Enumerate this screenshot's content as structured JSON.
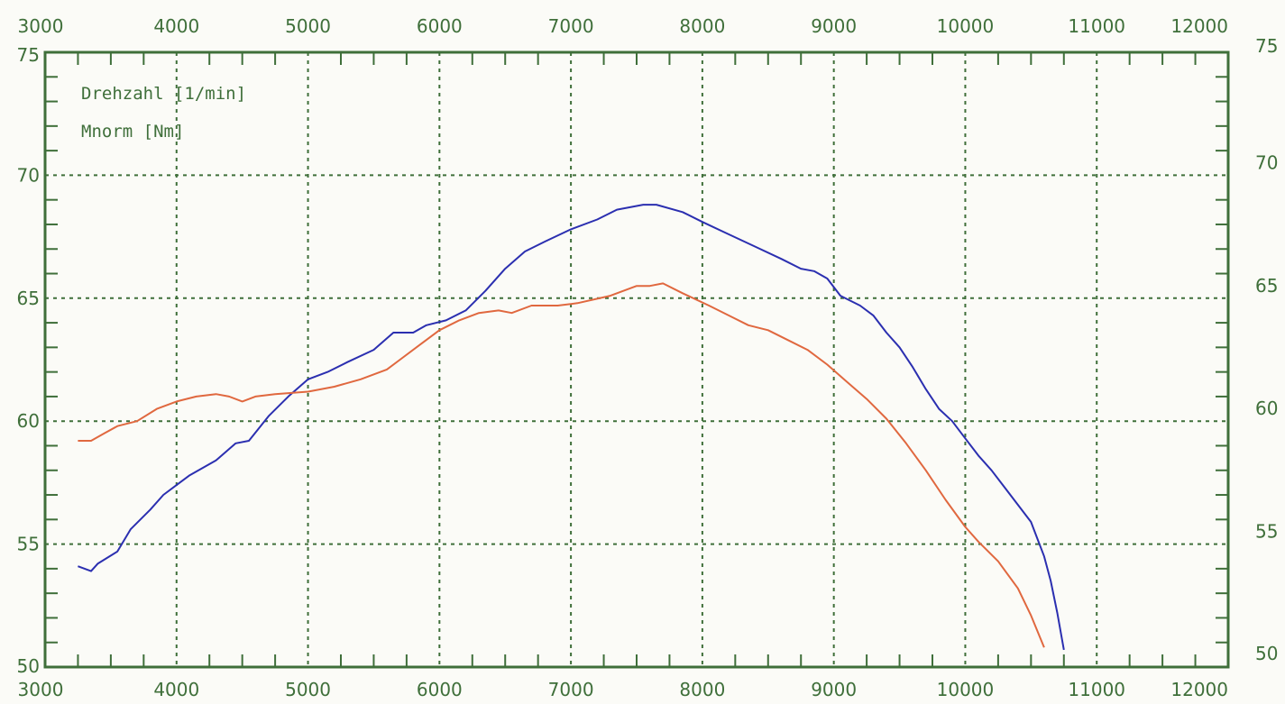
{
  "chart_data": {
    "type": "line",
    "x_ticks": [
      "3000",
      "4000",
      "5000",
      "6000",
      "7000",
      "8000",
      "9000",
      "10000",
      "11000",
      "12000"
    ],
    "y_ticks": [
      "50",
      "55",
      "60",
      "65",
      "70",
      "75"
    ],
    "xlim": [
      3000,
      12000
    ],
    "ylim": [
      50,
      75
    ],
    "grid": true,
    "legend_position": "top-left",
    "legend": [
      "Drehzahl [1/min]",
      "Mnorm [Nm]"
    ],
    "colors": {
      "axis": "#3f6f3a",
      "blue": "#2b2fb0",
      "orange": "#e0683f",
      "background": "#fbfbf7"
    },
    "series": [
      {
        "color": "#2b2fb0",
        "points": [
          [
            3250,
            54.1
          ],
          [
            3350,
            53.9
          ],
          [
            3400,
            54.2
          ],
          [
            3550,
            54.7
          ],
          [
            3650,
            55.6
          ],
          [
            3800,
            56.4
          ],
          [
            3900,
            57.0
          ],
          [
            4000,
            57.4
          ],
          [
            4100,
            57.8
          ],
          [
            4300,
            58.4
          ],
          [
            4450,
            59.1
          ],
          [
            4550,
            59.2
          ],
          [
            4700,
            60.2
          ],
          [
            4850,
            61.0
          ],
          [
            5000,
            61.7
          ],
          [
            5150,
            62.0
          ],
          [
            5300,
            62.4
          ],
          [
            5500,
            62.9
          ],
          [
            5650,
            63.6
          ],
          [
            5800,
            63.6
          ],
          [
            5900,
            63.9
          ],
          [
            6050,
            64.1
          ],
          [
            6200,
            64.5
          ],
          [
            6350,
            65.3
          ],
          [
            6500,
            66.2
          ],
          [
            6650,
            66.9
          ],
          [
            6800,
            67.3
          ],
          [
            7000,
            67.8
          ],
          [
            7200,
            68.2
          ],
          [
            7350,
            68.6
          ],
          [
            7550,
            68.8
          ],
          [
            7650,
            68.8
          ],
          [
            7850,
            68.5
          ],
          [
            8000,
            68.1
          ],
          [
            8200,
            67.6
          ],
          [
            8400,
            67.1
          ],
          [
            8600,
            66.6
          ],
          [
            8750,
            66.2
          ],
          [
            8850,
            66.1
          ],
          [
            8950,
            65.8
          ],
          [
            9050,
            65.1
          ],
          [
            9200,
            64.7
          ],
          [
            9300,
            64.3
          ],
          [
            9400,
            63.6
          ],
          [
            9500,
            63.0
          ],
          [
            9600,
            62.2
          ],
          [
            9700,
            61.3
          ],
          [
            9800,
            60.5
          ],
          [
            9900,
            60.0
          ],
          [
            10000,
            59.3
          ],
          [
            10100,
            58.6
          ],
          [
            10200,
            58.0
          ],
          [
            10300,
            57.3
          ],
          [
            10400,
            56.6
          ],
          [
            10500,
            55.9
          ],
          [
            10550,
            55.2
          ],
          [
            10600,
            54.5
          ],
          [
            10650,
            53.5
          ],
          [
            10700,
            52.2
          ],
          [
            10750,
            50.7
          ]
        ]
      },
      {
        "color": "#e0683f",
        "points": [
          [
            3250,
            59.2
          ],
          [
            3350,
            59.2
          ],
          [
            3450,
            59.5
          ],
          [
            3550,
            59.8
          ],
          [
            3700,
            60.0
          ],
          [
            3850,
            60.5
          ],
          [
            4000,
            60.8
          ],
          [
            4150,
            61.0
          ],
          [
            4300,
            61.1
          ],
          [
            4400,
            61.0
          ],
          [
            4500,
            60.8
          ],
          [
            4600,
            61.0
          ],
          [
            4750,
            61.1
          ],
          [
            5000,
            61.2
          ],
          [
            5200,
            61.4
          ],
          [
            5400,
            61.7
          ],
          [
            5600,
            62.1
          ],
          [
            5700,
            62.5
          ],
          [
            5850,
            63.1
          ],
          [
            6000,
            63.7
          ],
          [
            6150,
            64.1
          ],
          [
            6300,
            64.4
          ],
          [
            6450,
            64.5
          ],
          [
            6550,
            64.4
          ],
          [
            6700,
            64.7
          ],
          [
            6900,
            64.7
          ],
          [
            7050,
            64.8
          ],
          [
            7300,
            65.1
          ],
          [
            7500,
            65.5
          ],
          [
            7600,
            65.5
          ],
          [
            7700,
            65.6
          ],
          [
            7850,
            65.2
          ],
          [
            8050,
            64.7
          ],
          [
            8200,
            64.3
          ],
          [
            8350,
            63.9
          ],
          [
            8500,
            63.7
          ],
          [
            8650,
            63.3
          ],
          [
            8800,
            62.9
          ],
          [
            8950,
            62.3
          ],
          [
            9100,
            61.6
          ],
          [
            9250,
            60.9
          ],
          [
            9400,
            60.1
          ],
          [
            9550,
            59.1
          ],
          [
            9700,
            58.0
          ],
          [
            9850,
            56.8
          ],
          [
            10000,
            55.7
          ],
          [
            10100,
            55.1
          ],
          [
            10250,
            54.3
          ],
          [
            10400,
            53.2
          ],
          [
            10500,
            52.1
          ],
          [
            10600,
            50.8
          ]
        ]
      }
    ]
  }
}
